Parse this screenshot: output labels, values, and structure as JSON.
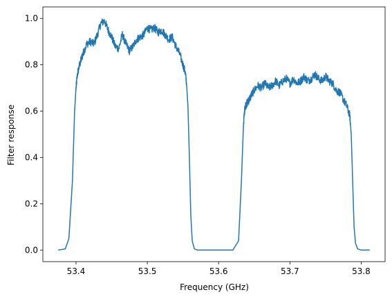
{
  "chart_data": {
    "type": "line",
    "title": "",
    "xlabel": "Frequency (GHz)",
    "ylabel": "Filter response",
    "xlim": [
      53.3535,
      53.8335
    ],
    "ylim": [
      -0.05,
      1.05
    ],
    "xticks": [
      53.4,
      53.5,
      53.6,
      53.7,
      53.8
    ],
    "xtick_labels": [
      "53.4",
      "53.5",
      "53.6",
      "53.7",
      "53.8"
    ],
    "yticks": [
      0.0,
      0.2,
      0.4,
      0.6,
      0.8,
      1.0
    ],
    "ytick_labels": [
      "0.0",
      "0.2",
      "0.4",
      "0.6",
      "0.8",
      "1.0"
    ],
    "grid": false,
    "legend": "none",
    "series": [
      {
        "color": "#1f77b4",
        "x": [
          53.375,
          53.385,
          53.39,
          53.395,
          53.398,
          53.4,
          53.402,
          53.405,
          53.408,
          53.41,
          53.415,
          53.42,
          53.425,
          53.43,
          53.435,
          53.44,
          53.445,
          53.45,
          53.455,
          53.46,
          53.465,
          53.47,
          53.475,
          53.48,
          53.485,
          53.49,
          53.495,
          53.5,
          53.505,
          53.51,
          53.515,
          53.52,
          53.525,
          53.53,
          53.535,
          53.54,
          53.545,
          53.55,
          53.553,
          53.555,
          53.557,
          53.559,
          53.561,
          53.563,
          53.566,
          53.57,
          53.58,
          53.62,
          53.628,
          53.632,
          53.635,
          53.637,
          53.639,
          53.641,
          53.643,
          53.646,
          53.65,
          53.655,
          53.66,
          53.665,
          53.67,
          53.675,
          53.68,
          53.685,
          53.69,
          53.695,
          53.7,
          53.705,
          53.71,
          53.715,
          53.72,
          53.725,
          53.73,
          53.735,
          53.74,
          53.745,
          53.75,
          53.755,
          53.76,
          53.765,
          53.77,
          53.775,
          53.78,
          53.784,
          53.786,
          53.788,
          53.79,
          53.792,
          53.795,
          53.8,
          53.812
        ],
        "y": [
          0.0,
          0.005,
          0.05,
          0.3,
          0.6,
          0.7,
          0.76,
          0.8,
          0.83,
          0.85,
          0.89,
          0.9,
          0.89,
          0.93,
          0.98,
          0.99,
          0.95,
          0.92,
          0.88,
          0.87,
          0.93,
          0.89,
          0.86,
          0.88,
          0.91,
          0.92,
          0.93,
          0.96,
          0.95,
          0.96,
          0.94,
          0.95,
          0.93,
          0.91,
          0.92,
          0.88,
          0.85,
          0.8,
          0.77,
          0.72,
          0.62,
          0.4,
          0.15,
          0.04,
          0.005,
          0.0,
          0.0,
          0.0,
          0.04,
          0.3,
          0.55,
          0.62,
          0.63,
          0.64,
          0.65,
          0.67,
          0.69,
          0.71,
          0.7,
          0.72,
          0.7,
          0.71,
          0.73,
          0.71,
          0.73,
          0.74,
          0.72,
          0.74,
          0.72,
          0.73,
          0.75,
          0.73,
          0.74,
          0.76,
          0.74,
          0.73,
          0.75,
          0.73,
          0.72,
          0.69,
          0.68,
          0.65,
          0.62,
          0.58,
          0.5,
          0.3,
          0.1,
          0.03,
          0.005,
          0.0,
          0.0
        ]
      }
    ]
  }
}
